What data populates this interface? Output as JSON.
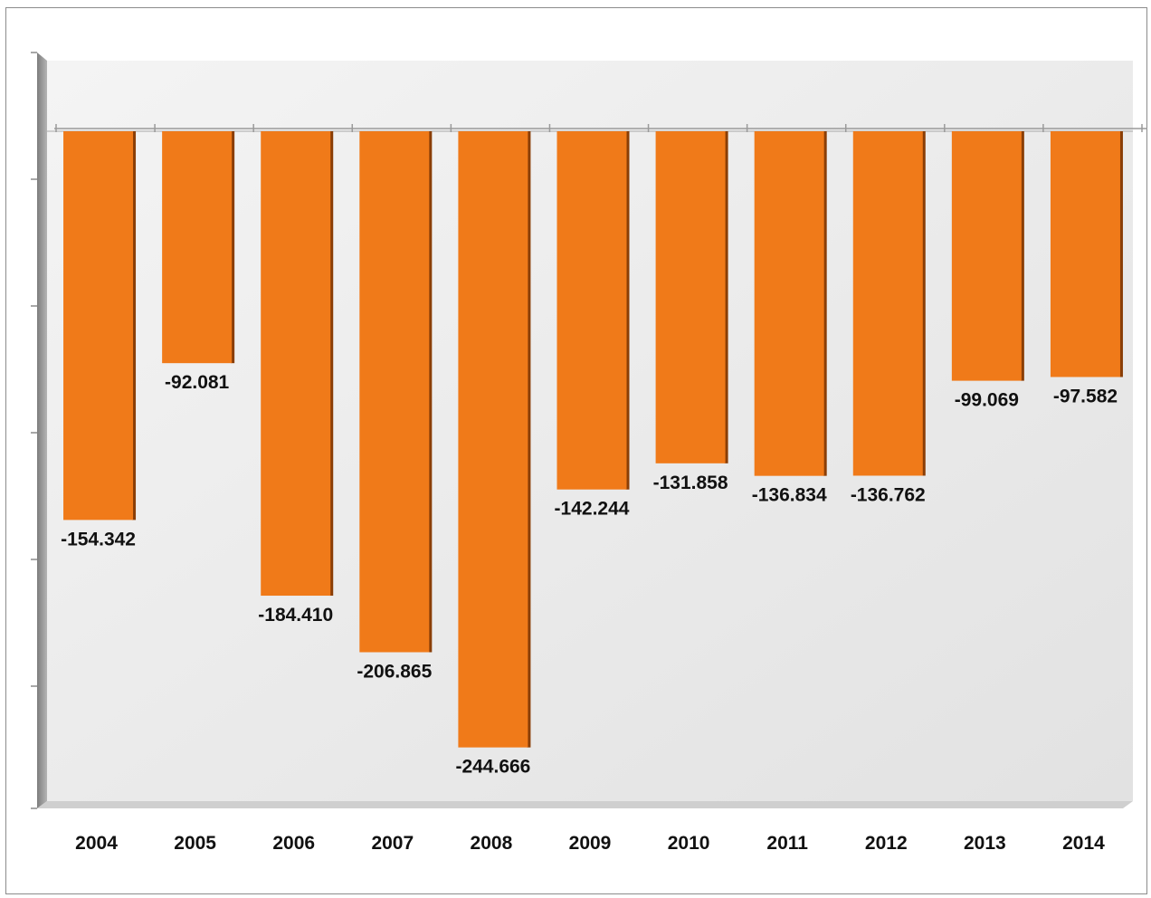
{
  "chart_data": {
    "type": "bar",
    "categories": [
      "2004",
      "2005",
      "2006",
      "2007",
      "2008",
      "2009",
      "2010",
      "2011",
      "2012",
      "2013",
      "2014"
    ],
    "values": [
      -154.342,
      -92.081,
      -184.41,
      -206.865,
      -244.666,
      -142.244,
      -131.858,
      -136.834,
      -136.762,
      -99.069,
      -97.582
    ],
    "data_labels": [
      "-154.342",
      "-92.081",
      "-184.410",
      "-206.865",
      "-244.666",
      "-142.244",
      "-131.858",
      "-136.834",
      "-136.762",
      "-99.069",
      "-97.582"
    ],
    "title": "",
    "xlabel": "",
    "ylabel": "",
    "ylim": [
      -270,
      28
    ],
    "grid": false,
    "legend": "none",
    "colors": {
      "bar": "#F07A19",
      "bar_shade": "#8A3E06",
      "plot_bg_light": "#F4F4F4",
      "plot_bg_dark": "#E2E2E2",
      "axis_wall": "#9A9A9A",
      "floor": "#CFCFCF"
    }
  }
}
